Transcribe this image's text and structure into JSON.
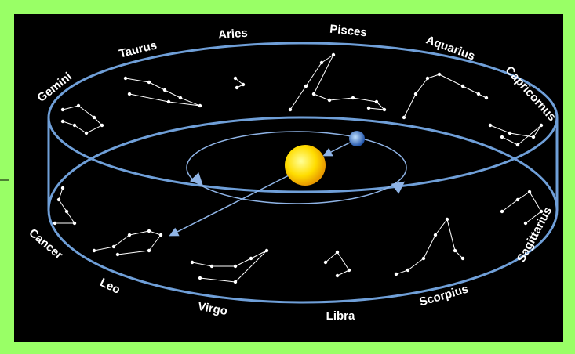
{
  "labels": [
    "Gemini",
    "Taurus",
    "Aries",
    "Pisces",
    "Aquarius",
    "Capricornus",
    "Sagittarius",
    "Scorpius",
    "Libra",
    "Virgo",
    "Leo",
    "Cancer"
  ]
}
